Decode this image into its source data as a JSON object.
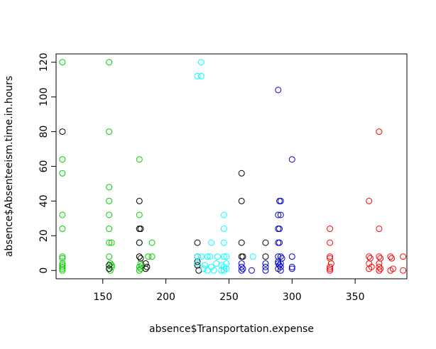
{
  "chart_data": {
    "type": "scatter",
    "title": "",
    "xlabel": "absence$Transportation.expense",
    "ylabel": "absence$Absenteeism.time.in.hours",
    "xlim": [
      113,
      391
    ],
    "ylim": [
      -4.8,
      124.8
    ],
    "xticks": [
      150,
      200,
      250,
      300,
      350
    ],
    "yticks": [
      0,
      20,
      40,
      60,
      80,
      100,
      120
    ],
    "grid": false,
    "legend": "none",
    "point_shape": "open-circle",
    "groups": [
      {
        "color": "#00CD00",
        "points": [
          [
            118,
            120
          ],
          [
            118,
            64
          ],
          [
            118,
            56
          ],
          [
            118,
            32
          ],
          [
            118,
            24
          ],
          [
            118,
            8
          ],
          [
            118,
            7
          ],
          [
            118,
            4
          ],
          [
            118,
            3
          ],
          [
            118,
            2
          ],
          [
            118,
            1
          ],
          [
            118,
            0
          ],
          [
            155,
            120
          ],
          [
            155,
            80
          ],
          [
            155,
            48
          ],
          [
            155,
            40
          ],
          [
            155,
            32
          ],
          [
            155,
            24
          ],
          [
            155,
            16
          ],
          [
            157,
            16
          ],
          [
            155,
            8
          ],
          [
            156,
            4
          ],
          [
            157,
            3
          ],
          [
            157,
            2
          ],
          [
            155,
            1
          ],
          [
            156,
            0
          ],
          [
            179,
            64
          ],
          [
            179,
            32
          ],
          [
            179,
            24
          ],
          [
            179,
            16
          ],
          [
            179,
            8
          ],
          [
            180,
            4
          ],
          [
            181,
            3
          ],
          [
            179,
            2
          ],
          [
            180,
            1
          ],
          [
            179,
            0
          ],
          [
            189,
            16
          ],
          [
            189,
            8
          ],
          [
            186,
            8
          ]
        ]
      },
      {
        "color": "#000000",
        "points": [
          [
            118,
            80
          ],
          [
            155,
            3
          ],
          [
            155,
            1
          ],
          [
            179,
            40
          ],
          [
            179,
            24
          ],
          [
            180,
            24
          ],
          [
            179,
            16
          ],
          [
            179,
            8
          ],
          [
            180,
            7
          ],
          [
            184,
            4
          ],
          [
            185,
            2
          ],
          [
            184,
            1
          ],
          [
            225,
            16
          ],
          [
            225,
            8
          ],
          [
            225,
            5
          ],
          [
            225,
            3
          ],
          [
            226,
            0
          ],
          [
            260,
            56
          ],
          [
            260,
            40
          ],
          [
            260,
            16
          ],
          [
            260,
            8
          ],
          [
            261,
            8
          ],
          [
            279,
            16
          ],
          [
            279,
            8
          ]
        ]
      },
      {
        "color": "#00FFFF",
        "points": [
          [
            228,
            120
          ],
          [
            225,
            112
          ],
          [
            228,
            112
          ],
          [
            246,
            32
          ],
          [
            246,
            24
          ],
          [
            246,
            16
          ],
          [
            246,
            8
          ],
          [
            236,
            16
          ],
          [
            225,
            8
          ],
          [
            228,
            8
          ],
          [
            233,
            8
          ],
          [
            235,
            8
          ],
          [
            241,
            8
          ],
          [
            248,
            8
          ],
          [
            225,
            4
          ],
          [
            231,
            3
          ],
          [
            236,
            2
          ],
          [
            240,
            4
          ],
          [
            244,
            3
          ],
          [
            246,
            2
          ],
          [
            248,
            1
          ],
          [
            230,
            1
          ],
          [
            233,
            0
          ],
          [
            238,
            0
          ],
          [
            244,
            0
          ],
          [
            246,
            0
          ],
          [
            248,
            4
          ],
          [
            269,
            8
          ]
        ]
      },
      {
        "color": "#0000CD",
        "points": [
          [
            289,
            104
          ],
          [
            300,
            64
          ],
          [
            291,
            40
          ],
          [
            290,
            40
          ],
          [
            289,
            32
          ],
          [
            291,
            32
          ],
          [
            289,
            24
          ],
          [
            290,
            24
          ],
          [
            289,
            16
          ],
          [
            290,
            16
          ],
          [
            289,
            8
          ],
          [
            291,
            8
          ],
          [
            292,
            7
          ],
          [
            300,
            8
          ],
          [
            289,
            4
          ],
          [
            290,
            3
          ],
          [
            291,
            2
          ],
          [
            289,
            1
          ],
          [
            291,
            0
          ],
          [
            300,
            2
          ],
          [
            300,
            1
          ],
          [
            279,
            4
          ],
          [
            279,
            2
          ],
          [
            279,
            0
          ],
          [
            260,
            4
          ],
          [
            260,
            2
          ],
          [
            260,
            0
          ],
          [
            261,
            1
          ],
          [
            268,
            0
          ],
          [
            289,
            5
          ],
          [
            291,
            4
          ]
        ]
      },
      {
        "color": "#FF0000",
        "points": [
          [
            369,
            80
          ],
          [
            361,
            40
          ],
          [
            330,
            24
          ],
          [
            369,
            24
          ],
          [
            330,
            16
          ],
          [
            330,
            8
          ],
          [
            330,
            7
          ],
          [
            331,
            4
          ],
          [
            330,
            2
          ],
          [
            330,
            1
          ],
          [
            330,
            0
          ],
          [
            361,
            8
          ],
          [
            362,
            7
          ],
          [
            361,
            4
          ],
          [
            363,
            2
          ],
          [
            361,
            1
          ],
          [
            369,
            8
          ],
          [
            370,
            7
          ],
          [
            369,
            4
          ],
          [
            369,
            2
          ],
          [
            370,
            1
          ],
          [
            369,
            0
          ],
          [
            378,
            8
          ],
          [
            379,
            7
          ],
          [
            378,
            0
          ],
          [
            380,
            1
          ],
          [
            388,
            8
          ],
          [
            388,
            0
          ]
        ]
      }
    ]
  }
}
